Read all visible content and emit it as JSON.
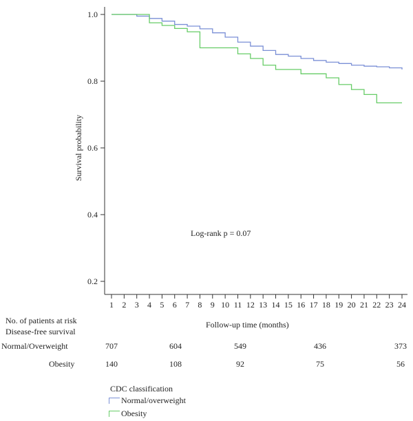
{
  "chart_data": {
    "type": "line",
    "step": true,
    "xlabel": "Follow-up time (months)",
    "ylabel": "Survival probability",
    "xlim": [
      1,
      24
    ],
    "ylim": [
      0.2,
      1.0
    ],
    "x_ticks": [
      "1",
      "2",
      "3",
      "4",
      "5",
      "6",
      "7",
      "8",
      "9",
      "10",
      "11",
      "12",
      "13",
      "14",
      "15",
      "16",
      "17",
      "18",
      "19",
      "20",
      "21",
      "22",
      "23",
      "24"
    ],
    "y_ticks": [
      "0.2",
      "0.4",
      "0.6",
      "0.8",
      "1.0"
    ],
    "annotation": "Log-rank p = 0.07",
    "series": [
      {
        "name": "Normal/overweight",
        "color": "#7a8fd6",
        "x": [
          1,
          3,
          4,
          5,
          6,
          7,
          8,
          9,
          10,
          11,
          12,
          13,
          14,
          15,
          16,
          17,
          18,
          19,
          20,
          21,
          22,
          23,
          24
        ],
        "y": [
          1.0,
          0.995,
          0.988,
          0.98,
          0.97,
          0.965,
          0.957,
          0.945,
          0.932,
          0.917,
          0.905,
          0.892,
          0.88,
          0.875,
          0.868,
          0.862,
          0.857,
          0.853,
          0.848,
          0.845,
          0.843,
          0.84,
          0.835
        ]
      },
      {
        "name": "Obesity",
        "color": "#66cc66",
        "x": [
          1,
          4,
          5,
          6,
          7,
          8,
          11,
          12,
          13,
          14,
          16,
          18,
          19,
          20,
          21,
          22,
          24
        ],
        "y": [
          1.0,
          0.975,
          0.967,
          0.958,
          0.948,
          0.9,
          0.882,
          0.868,
          0.848,
          0.835,
          0.822,
          0.81,
          0.79,
          0.775,
          0.76,
          0.735,
          0.735
        ]
      }
    ]
  },
  "risk_table": {
    "header1": "No. of patients at risk",
    "header2": "Disease-free survival",
    "rows": [
      {
        "label": "Normal/Overweight",
        "values": [
          "707",
          "604",
          "549",
          "436",
          "373"
        ]
      },
      {
        "label": "Obesity",
        "values": [
          "140",
          "108",
          "92",
          "75",
          "56"
        ]
      }
    ]
  },
  "legend": {
    "title": "CDC classification",
    "items": [
      "Normal/overweight",
      "Obesity"
    ]
  }
}
